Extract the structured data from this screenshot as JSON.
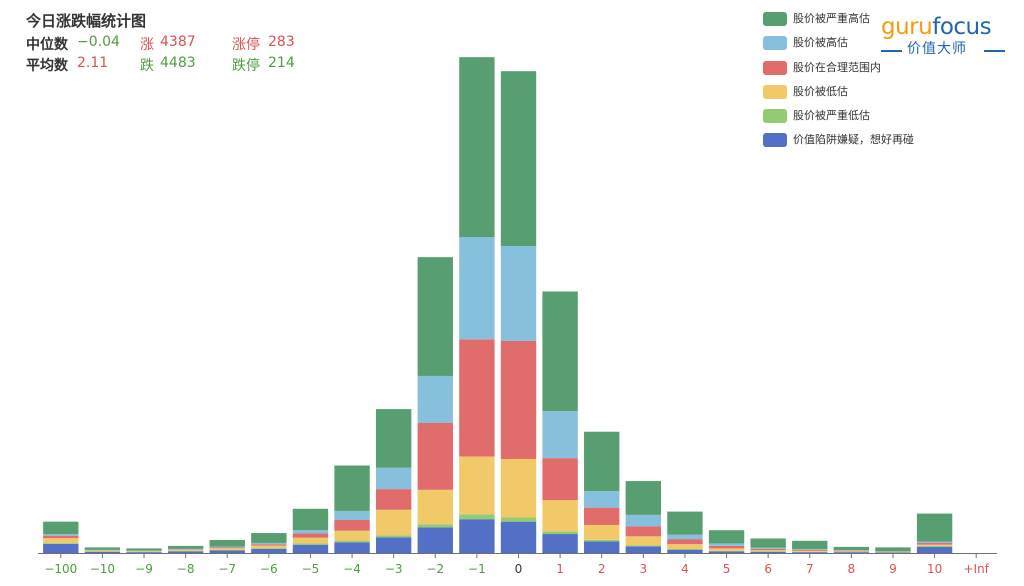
{
  "header": {
    "title": "今日涨跌幅统计图",
    "median_label": "中位数",
    "median_value": "−0.04",
    "up_label": "涨",
    "up_value": "4387",
    "limit_up_label": "涨停",
    "limit_up_value": "283",
    "mean_label": "平均数",
    "mean_value": "2.11",
    "down_label": "跌",
    "down_value": "4483",
    "limit_down_label": "跌停",
    "limit_down_value": "214"
  },
  "logo": {
    "guru": "guru",
    "focus": "focus",
    "subtitle": "价值大师"
  },
  "colors": {
    "positive": "#d9534f",
    "negative": "#4d9e3f",
    "axis_neutral": "#333333",
    "logo_orange": "#f39c12",
    "logo_blue": "#2066b3"
  },
  "chart_data": {
    "type": "bar",
    "stacked": true,
    "categories": [
      "−100",
      "−10",
      "−9",
      "−8",
      "−7",
      "−6",
      "−5",
      "−4",
      "−3",
      "−2",
      "−1",
      "0",
      "1",
      "2",
      "3",
      "4",
      "5",
      "6",
      "7",
      "8",
      "9",
      "10",
      "+Inf"
    ],
    "ylim": [
      0,
      3000
    ],
    "grid": false,
    "legend_position": "top-right",
    "series": [
      {
        "name": "价值陷阱嫌疑，想好再碰",
        "color": "#5470c6",
        "values": [
          55,
          8,
          5,
          10,
          15,
          25,
          50,
          65,
          95,
          155,
          205,
          190,
          115,
          70,
          40,
          20,
          10,
          8,
          5,
          5,
          3,
          38,
          0
        ]
      },
      {
        "name": "股价被严重低估",
        "color": "#91cc75",
        "values": [
          5,
          2,
          2,
          3,
          4,
          5,
          8,
          10,
          12,
          18,
          30,
          25,
          15,
          10,
          6,
          4,
          3,
          2,
          2,
          1,
          1,
          5,
          0
        ]
      },
      {
        "name": "股价被低估",
        "color": "#f2c968",
        "values": [
          30,
          5,
          4,
          6,
          10,
          15,
          35,
          60,
          155,
          210,
          350,
          355,
          190,
          90,
          55,
          30,
          15,
          8,
          6,
          4,
          3,
          8,
          0
        ]
      },
      {
        "name": "股价在合理范围内",
        "color": "#e06c6b",
        "values": [
          15,
          2,
          2,
          3,
          5,
          8,
          25,
          65,
          125,
          405,
          710,
          715,
          255,
          105,
          60,
          30,
          15,
          7,
          6,
          4,
          2,
          10,
          0
        ]
      },
      {
        "name": "股价被高估",
        "color": "#87c0dc",
        "values": [
          10,
          2,
          2,
          3,
          5,
          8,
          20,
          55,
          130,
          285,
          620,
          575,
          285,
          100,
          70,
          27,
          15,
          8,
          5,
          3,
          2,
          8,
          0
        ]
      },
      {
        "name": "股价被严重高估",
        "color": "#579f70",
        "values": [
          75,
          15,
          13,
          18,
          40,
          60,
          130,
          275,
          355,
          720,
          1090,
          1060,
          725,
          360,
          205,
          140,
          80,
          55,
          50,
          20,
          23,
          170,
          0
        ]
      }
    ]
  }
}
